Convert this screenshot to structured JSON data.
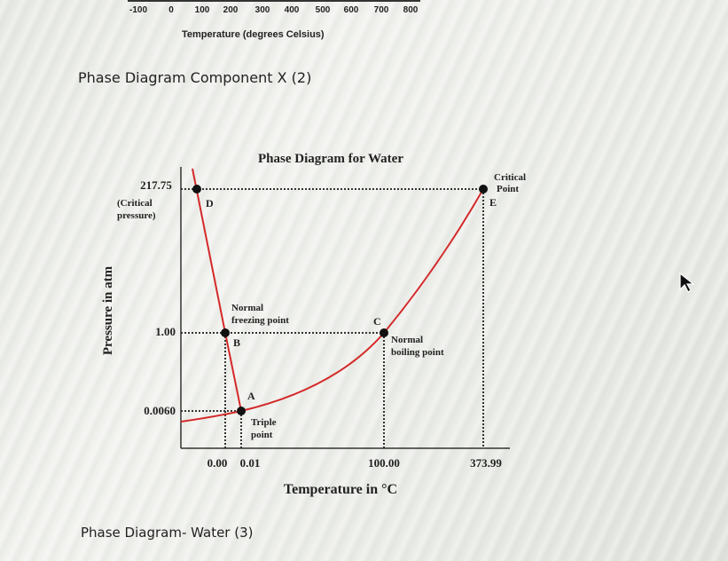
{
  "top_axis": {
    "ticks": [
      "-100",
      "0",
      "100",
      "200",
      "300",
      "400",
      "500",
      "600",
      "700",
      "800"
    ],
    "title": "Temperature (degrees Celsius)"
  },
  "headings": {
    "component_x": "Phase Diagram Component X (2)",
    "water": "Phase Diagram- Water (3)"
  },
  "diagram": {
    "title": "Phase Diagram for Water",
    "ylabel": "Pressure in atm",
    "xlabel": "Temperature in °C",
    "y_ticks": {
      "p1": "217.75",
      "p1_note1": "(Critical",
      "p1_note2": "pressure)",
      "p2": "1.00",
      "p3": "0.0060"
    },
    "x_ticks": {
      "t1": "0.00",
      "t2": "0.01",
      "t3": "100.00",
      "t4": "373.99"
    },
    "points": {
      "A": {
        "letter": "A",
        "label1": "Triple",
        "label2": "point",
        "temperature": "0.01",
        "pressure": "0.0060"
      },
      "B": {
        "letter": "B",
        "label1": "Normal",
        "label2": "freezing point",
        "temperature": "0.00",
        "pressure": "1.00"
      },
      "C": {
        "letter": "C",
        "label1": "Normal",
        "label2": "boiling point",
        "temperature": "100.00",
        "pressure": "1.00"
      },
      "D": {
        "letter": "D"
      },
      "E": {
        "letter": "E",
        "label1": "Critical",
        "label2": "Point",
        "temperature": "373.99",
        "pressure": "217.75"
      }
    },
    "curve_color": "#d42a2a"
  }
}
